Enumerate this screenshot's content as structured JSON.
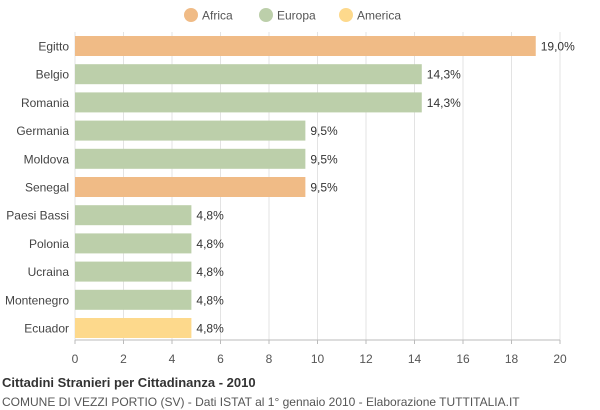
{
  "chart_data": {
    "type": "bar",
    "orientation": "horizontal",
    "title": "Cittadini Stranieri per Cittadinanza - 2010",
    "subtitle": "COMUNE DI VEZZI PORTIO (SV) - Dati ISTAT al 1° gennaio 2010 - Elaborazione TUTTITALIA.IT",
    "legend": {
      "placement": "top-center",
      "items": [
        {
          "name": "Africa",
          "color": "#f0bb86"
        },
        {
          "name": "Europa",
          "color": "#bccfaa"
        },
        {
          "name": "America",
          "color": "#fdd98c"
        }
      ]
    },
    "categories": [
      "Egitto",
      "Belgio",
      "Romania",
      "Germania",
      "Moldova",
      "Senegal",
      "Paesi Bassi",
      "Polonia",
      "Ucraina",
      "Montenegro",
      "Ecuador"
    ],
    "values": [
      19.0,
      14.3,
      14.3,
      9.5,
      9.5,
      9.5,
      4.8,
      4.8,
      4.8,
      4.8,
      4.8
    ],
    "value_labels": [
      "19,0%",
      "14,3%",
      "14,3%",
      "9,5%",
      "9,5%",
      "9,5%",
      "4,8%",
      "4,8%",
      "4,8%",
      "4,8%",
      "4,8%"
    ],
    "groups": [
      "Africa",
      "Europa",
      "Europa",
      "Europa",
      "Europa",
      "Africa",
      "Europa",
      "Europa",
      "Europa",
      "Europa",
      "America"
    ],
    "xlim": [
      0,
      20
    ],
    "xticks": [
      0,
      2,
      4,
      6,
      8,
      10,
      12,
      14,
      16,
      18,
      20
    ],
    "grid": true
  }
}
